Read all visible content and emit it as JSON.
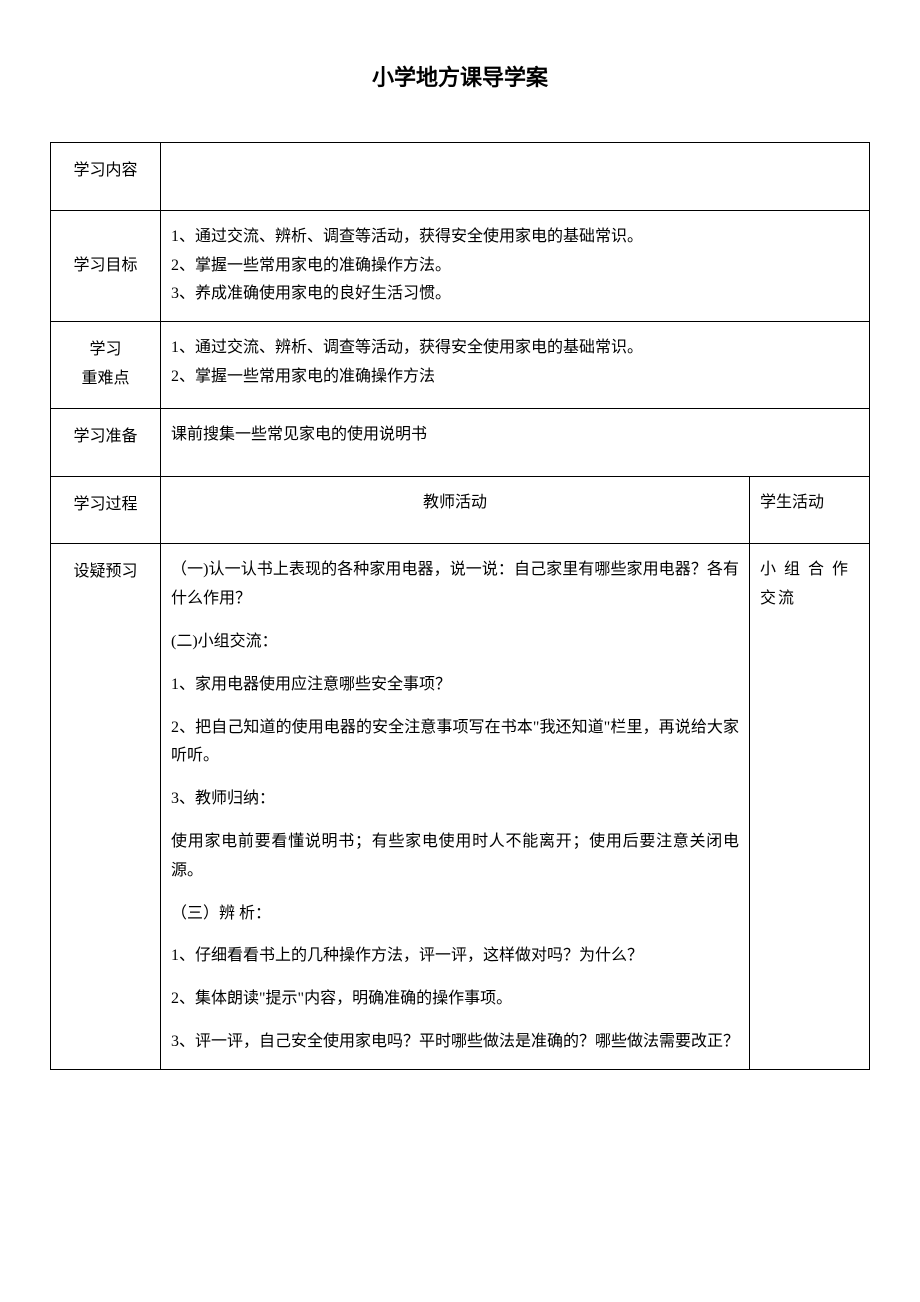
{
  "title": "小学地方课导学案",
  "table": {
    "rows": [
      {
        "label": "学习内容",
        "content": ""
      },
      {
        "label": "学习目标",
        "content_lines": [
          "1、通过交流、辨析、调查等活动，获得安全使用家电的基础常识。",
          "2、掌握一些常用家电的准确操作方法。",
          "3、养成准确使用家电的良好生活习惯。"
        ]
      },
      {
        "label": "学习\n重难点",
        "content_lines": [
          "1、通过交流、辨析、调查等活动，获得安全使用家电的基础常识。",
          "2、掌握一些常用家电的准确操作方法"
        ]
      },
      {
        "label": "学习准备",
        "content": "课前搜集一些常见家电的使用说明书"
      }
    ],
    "process_header": {
      "label": "学习过程",
      "teacher": "教师活动",
      "student": "学生活动"
    },
    "process_body": {
      "label": "设疑预习",
      "teacher_lines": [
        "（一)认一认书上表现的各种家用电器，说一说：自己家里有哪些家用电器？各有什么作用？",
        "(二)小组交流：",
        "1、家用电器使用应注意哪些安全事项？",
        "2、把自己知道的使用电器的安全注意事项写在书本\"我还知道\"栏里，再说给大家听听。",
        "3、教师归纳：",
        "使用家电前要看懂说明书；有些家电使用时人不能离开；使用后要注意关闭电源。",
        "（三）辨 析：",
        "1、仔细看看书上的几种操作方法，评一评，这样做对吗？为什么？",
        "2、集体朗读\"提示\"内容，明确准确的操作事项。",
        "3、评一评，自己安全使用家电吗？平时哪些做法是准确的？哪些做法需要改正？"
      ],
      "student": "小 组 合 作 交流"
    }
  },
  "styles": {
    "background_color": "#ffffff",
    "border_color": "#000000",
    "font_size_title": 22,
    "font_size_body": 16,
    "label_col_width": 110,
    "student_col_width": 120
  }
}
